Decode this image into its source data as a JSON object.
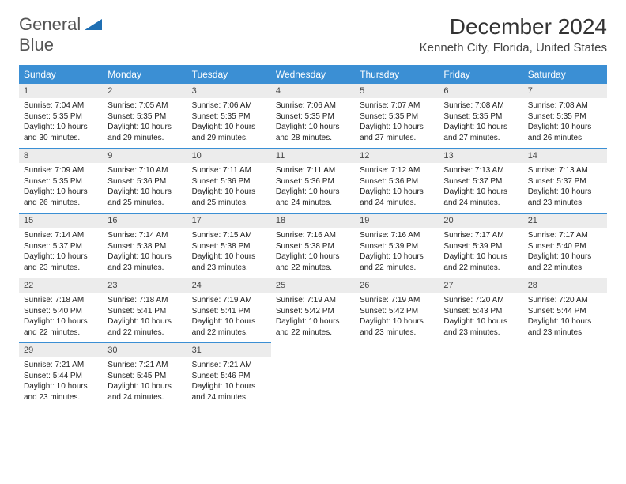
{
  "logo": {
    "word1": "General",
    "word2": "Blue",
    "text_color": "#555555",
    "blue_color": "#2a7bbf"
  },
  "title": "December 2024",
  "subtitle": "Kenneth City, Florida, United States",
  "colors": {
    "header_bg": "#3b8fd4",
    "header_text": "#ffffff",
    "daynum_bg": "#ececec",
    "border": "#3b8fd4",
    "body_text": "#222222"
  },
  "day_headers": [
    "Sunday",
    "Monday",
    "Tuesday",
    "Wednesday",
    "Thursday",
    "Friday",
    "Saturday"
  ],
  "weeks": [
    [
      {
        "n": "1",
        "sr": "7:04 AM",
        "ss": "5:35 PM",
        "dl": "10 hours and 30 minutes."
      },
      {
        "n": "2",
        "sr": "7:05 AM",
        "ss": "5:35 PM",
        "dl": "10 hours and 29 minutes."
      },
      {
        "n": "3",
        "sr": "7:06 AM",
        "ss": "5:35 PM",
        "dl": "10 hours and 29 minutes."
      },
      {
        "n": "4",
        "sr": "7:06 AM",
        "ss": "5:35 PM",
        "dl": "10 hours and 28 minutes."
      },
      {
        "n": "5",
        "sr": "7:07 AM",
        "ss": "5:35 PM",
        "dl": "10 hours and 27 minutes."
      },
      {
        "n": "6",
        "sr": "7:08 AM",
        "ss": "5:35 PM",
        "dl": "10 hours and 27 minutes."
      },
      {
        "n": "7",
        "sr": "7:08 AM",
        "ss": "5:35 PM",
        "dl": "10 hours and 26 minutes."
      }
    ],
    [
      {
        "n": "8",
        "sr": "7:09 AM",
        "ss": "5:35 PM",
        "dl": "10 hours and 26 minutes."
      },
      {
        "n": "9",
        "sr": "7:10 AM",
        "ss": "5:36 PM",
        "dl": "10 hours and 25 minutes."
      },
      {
        "n": "10",
        "sr": "7:11 AM",
        "ss": "5:36 PM",
        "dl": "10 hours and 25 minutes."
      },
      {
        "n": "11",
        "sr": "7:11 AM",
        "ss": "5:36 PM",
        "dl": "10 hours and 24 minutes."
      },
      {
        "n": "12",
        "sr": "7:12 AM",
        "ss": "5:36 PM",
        "dl": "10 hours and 24 minutes."
      },
      {
        "n": "13",
        "sr": "7:13 AM",
        "ss": "5:37 PM",
        "dl": "10 hours and 24 minutes."
      },
      {
        "n": "14",
        "sr": "7:13 AM",
        "ss": "5:37 PM",
        "dl": "10 hours and 23 minutes."
      }
    ],
    [
      {
        "n": "15",
        "sr": "7:14 AM",
        "ss": "5:37 PM",
        "dl": "10 hours and 23 minutes."
      },
      {
        "n": "16",
        "sr": "7:14 AM",
        "ss": "5:38 PM",
        "dl": "10 hours and 23 minutes."
      },
      {
        "n": "17",
        "sr": "7:15 AM",
        "ss": "5:38 PM",
        "dl": "10 hours and 23 minutes."
      },
      {
        "n": "18",
        "sr": "7:16 AM",
        "ss": "5:38 PM",
        "dl": "10 hours and 22 minutes."
      },
      {
        "n": "19",
        "sr": "7:16 AM",
        "ss": "5:39 PM",
        "dl": "10 hours and 22 minutes."
      },
      {
        "n": "20",
        "sr": "7:17 AM",
        "ss": "5:39 PM",
        "dl": "10 hours and 22 minutes."
      },
      {
        "n": "21",
        "sr": "7:17 AM",
        "ss": "5:40 PM",
        "dl": "10 hours and 22 minutes."
      }
    ],
    [
      {
        "n": "22",
        "sr": "7:18 AM",
        "ss": "5:40 PM",
        "dl": "10 hours and 22 minutes."
      },
      {
        "n": "23",
        "sr": "7:18 AM",
        "ss": "5:41 PM",
        "dl": "10 hours and 22 minutes."
      },
      {
        "n": "24",
        "sr": "7:19 AM",
        "ss": "5:41 PM",
        "dl": "10 hours and 22 minutes."
      },
      {
        "n": "25",
        "sr": "7:19 AM",
        "ss": "5:42 PM",
        "dl": "10 hours and 22 minutes."
      },
      {
        "n": "26",
        "sr": "7:19 AM",
        "ss": "5:42 PM",
        "dl": "10 hours and 23 minutes."
      },
      {
        "n": "27",
        "sr": "7:20 AM",
        "ss": "5:43 PM",
        "dl": "10 hours and 23 minutes."
      },
      {
        "n": "28",
        "sr": "7:20 AM",
        "ss": "5:44 PM",
        "dl": "10 hours and 23 minutes."
      }
    ],
    [
      {
        "n": "29",
        "sr": "7:21 AM",
        "ss": "5:44 PM",
        "dl": "10 hours and 23 minutes."
      },
      {
        "n": "30",
        "sr": "7:21 AM",
        "ss": "5:45 PM",
        "dl": "10 hours and 24 minutes."
      },
      {
        "n": "31",
        "sr": "7:21 AM",
        "ss": "5:46 PM",
        "dl": "10 hours and 24 minutes."
      },
      null,
      null,
      null,
      null
    ]
  ],
  "labels": {
    "sunrise": "Sunrise: ",
    "sunset": "Sunset: ",
    "daylight": "Daylight: "
  }
}
